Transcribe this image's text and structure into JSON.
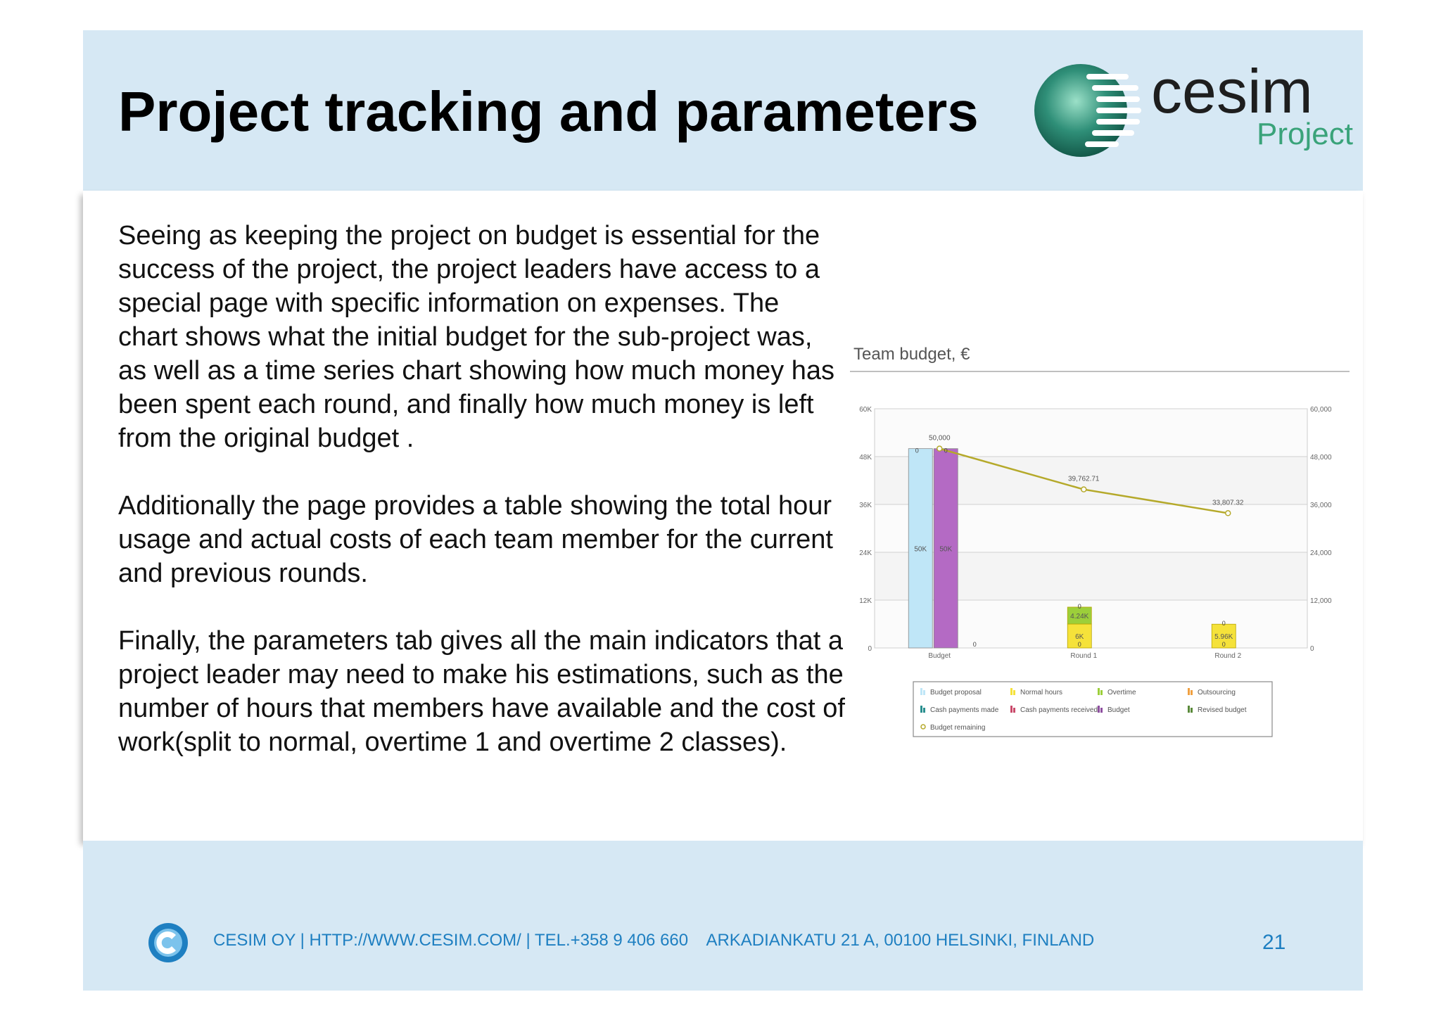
{
  "slide": {
    "title": "Project tracking and parameters",
    "logo": {
      "brand": "cesim",
      "product": "Project"
    },
    "paragraphs": [
      "Seeing as keeping the project on budget is essential for the success of the project, the project leaders have access to a special page with specific information on expenses. The chart shows what the initial budget for the sub-project was, as well as a time series chart showing how much money has been spent each round, and finally how much money is left from the original budget .",
      "Additionally the page provides a table showing the total hour usage and actual costs of each team member for the current and previous rounds.",
      "Finally, the parameters tab gives all the main indicators that a project leader may need to make his estimations, such as the number of hours that members have available and the cost of work(split to normal, overtime 1 and overtime 2 classes)."
    ],
    "footer": {
      "text": "CESIM OY | HTTP://WWW.CESIM.COM/ | TEL.+358 9 406 660    ARKADIANKATU 21 A, 00100 HELSINKI, FINLAND",
      "page_number": "21"
    }
  },
  "colors": {
    "header_bg": "#d6e8f4",
    "footer_text": "#1e7fc1",
    "budget_proposal": "#bfe6f7",
    "budget": "#b46ac4",
    "normal_hours": "#f5e23a",
    "overtime": "#9ccf3a",
    "budget_remaining": "#b5a92a"
  },
  "chart_data": {
    "type": "bar",
    "title": "Team budget, €",
    "categories": [
      "Budget",
      "Round 1",
      "Round 2"
    ],
    "ylim": [
      0,
      60000
    ],
    "left_ticks": [
      "0",
      "12K",
      "24K",
      "36K",
      "48K",
      "60K"
    ],
    "right_ticks": [
      "0",
      "12,000",
      "24,000",
      "36,000",
      "48,000",
      "60,000"
    ],
    "series": [
      {
        "name": "Budget proposal",
        "values": [
          50000,
          0,
          0
        ],
        "labels": [
          "50K",
          "",
          ""
        ],
        "color": "#bfe6f7"
      },
      {
        "name": "Budget",
        "values": [
          50000,
          0,
          0
        ],
        "labels": [
          "50K",
          "",
          ""
        ],
        "color": "#b46ac4"
      },
      {
        "name": "Normal hours",
        "values": [
          0,
          6000,
          5960
        ],
        "labels": [
          "",
          "6K",
          "5.96K"
        ],
        "color": "#f5e23a"
      },
      {
        "name": "Overtime",
        "values": [
          0,
          4240,
          0
        ],
        "labels": [
          "",
          "4.24K",
          ""
        ],
        "color": "#9ccf3a"
      },
      {
        "name": "Budget remaining",
        "type": "line",
        "values": [
          50000,
          39762.71,
          33807.32
        ],
        "labels": [
          "50,000",
          "39,762.71",
          "33,807.32"
        ],
        "color": "#b5a92a"
      }
    ],
    "zero_labels": [
      "0",
      "0",
      "0",
      "0",
      "0",
      "0",
      "0"
    ],
    "legend": {
      "placement": "bottom",
      "entries": [
        "Budget proposal",
        "Normal hours",
        "Overtime",
        "Outsourcing",
        "Cash payments made",
        "Cash payments received",
        "Budget",
        "Revised budget",
        "Budget remaining"
      ],
      "colors": [
        "#bfe6f7",
        "#f5e23a",
        "#9ccf3a",
        "#f0a040",
        "#2a8f8f",
        "#c94a6a",
        "#8e4fa0",
        "#5a8a3a",
        "#b5a92a"
      ]
    },
    "grid": true
  }
}
